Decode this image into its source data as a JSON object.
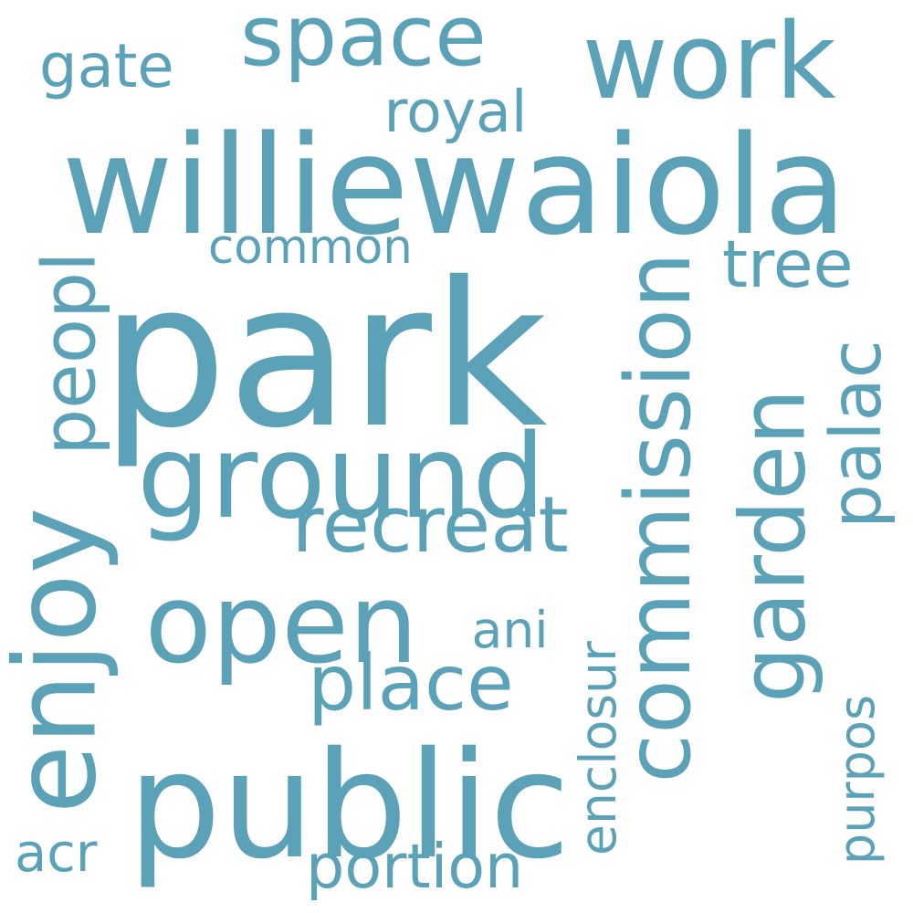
{
  "cloud": {
    "color": "#5ba1b8",
    "words": [
      {
        "text": "park",
        "orientation": "horizontal"
      },
      {
        "text": "williewaiola",
        "orientation": "horizontal"
      },
      {
        "text": "ground",
        "orientation": "horizontal"
      },
      {
        "text": "public",
        "orientation": "horizontal"
      },
      {
        "text": "open",
        "orientation": "horizontal"
      },
      {
        "text": "commission",
        "orientation": "vertical"
      },
      {
        "text": "garden",
        "orientation": "vertical"
      },
      {
        "text": "enjoy",
        "orientation": "vertical"
      },
      {
        "text": "space",
        "orientation": "horizontal"
      },
      {
        "text": "work",
        "orientation": "horizontal"
      },
      {
        "text": "recreat",
        "orientation": "horizontal"
      },
      {
        "text": "place",
        "orientation": "horizontal"
      },
      {
        "text": "tree",
        "orientation": "horizontal"
      },
      {
        "text": "peopl",
        "orientation": "vertical"
      },
      {
        "text": "palac",
        "orientation": "vertical"
      },
      {
        "text": "portion",
        "orientation": "horizontal"
      },
      {
        "text": "enclosur",
        "orientation": "vertical"
      },
      {
        "text": "purpos",
        "orientation": "vertical"
      },
      {
        "text": "common",
        "orientation": "horizontal"
      },
      {
        "text": "royal",
        "orientation": "horizontal"
      },
      {
        "text": "gate",
        "orientation": "horizontal"
      },
      {
        "text": "ani",
        "orientation": "horizontal"
      },
      {
        "text": "acr",
        "orientation": "horizontal"
      }
    ]
  }
}
